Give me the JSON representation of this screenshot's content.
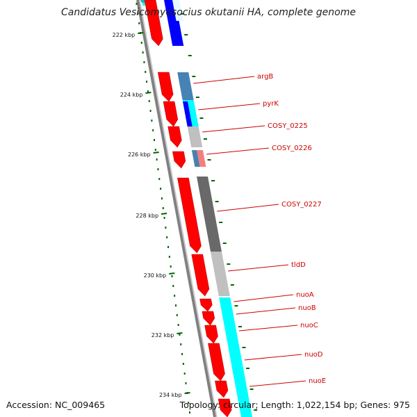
{
  "title": "Candidatus Vesicomyosocius okutanii HA, complete genome",
  "footer": {
    "accession": "Accession: NC_009465",
    "summary": "Topology: circular; Length: 1,022,154 bp; Genes: 975"
  },
  "colors": {
    "cds_forward": "#ff0000",
    "cog_blue": "#0000ff",
    "cog_cyan": "#00ffff",
    "cog_steel": "#4682b4",
    "cog_gray": "#c0c0c0",
    "cog_dark": "#696969",
    "cog_pink": "#f08080",
    "tick": "#006400",
    "label_line": "#cc0000",
    "backbone": "#808080"
  },
  "kbp_ticks": [
    "222 kbp",
    "224 kbp",
    "226 kbp",
    "228 kbp",
    "230 kbp",
    "232 kbp",
    "234 kbp"
  ],
  "genes": [
    {
      "label": "argB",
      "cog_color": "#4682b4"
    },
    {
      "label": "pyrK",
      "cog_color": "#00ffff"
    },
    {
      "label": "COSY_0225",
      "cog_color": "#c0c0c0"
    },
    {
      "label": "COSY_0226",
      "cog_color": "#f08080"
    },
    {
      "label": "COSY_0227",
      "cog_color": "#696969"
    },
    {
      "label": "tldD",
      "cog_color": "#c0c0c0"
    },
    {
      "label": "nuoA",
      "cog_color": "#00ffff"
    },
    {
      "label": "nuoB",
      "cog_color": "#00ffff"
    },
    {
      "label": "nuoC",
      "cog_color": "#00ffff"
    },
    {
      "label": "nuoD",
      "cog_color": "#00ffff"
    },
    {
      "label": "nuoE",
      "cog_color": "#00ffff"
    }
  ]
}
